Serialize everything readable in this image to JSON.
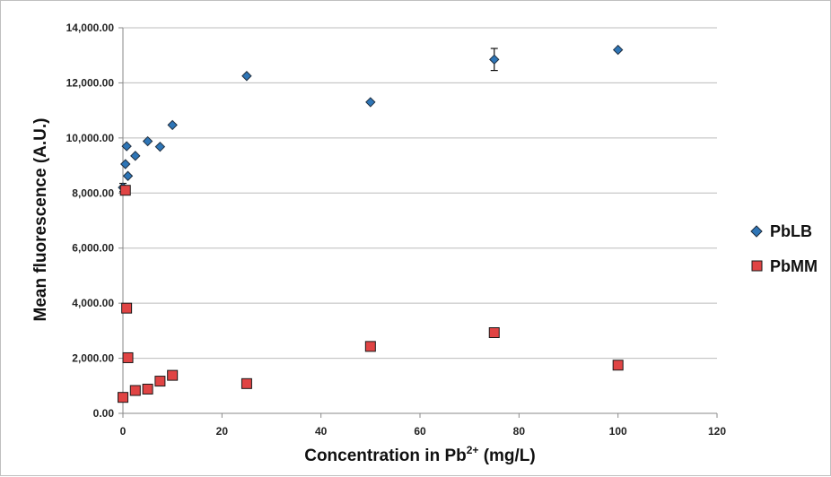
{
  "chart_data": {
    "type": "scatter",
    "xlabel": "Concentration in Pb",
    "xlabel_superscript": "2+",
    "xlabel_suffix": " (mg/L)",
    "ylabel": "Mean fluorescence (A.U.)",
    "xlim": [
      0,
      120
    ],
    "ylim": [
      0,
      14000
    ],
    "x_ticks": [
      "0",
      "20",
      "40",
      "60",
      "80",
      "100",
      "120"
    ],
    "y_ticks": [
      "0.00",
      "2,000.00",
      "4,000.00",
      "6,000.00",
      "8,000.00",
      "10,000.00",
      "12,000.00",
      "14,000.00"
    ],
    "grid": "horizontal",
    "legend_position": "right",
    "series": [
      {
        "name": "PbLB",
        "marker": "diamond",
        "color": "#2e75b6",
        "points": [
          {
            "x": 0,
            "y": 8200,
            "err": 150
          },
          {
            "x": 0.5,
            "y": 9050,
            "err": 0
          },
          {
            "x": 0.75,
            "y": 9700,
            "err": 0
          },
          {
            "x": 1,
            "y": 8620,
            "err": 0
          },
          {
            "x": 2.5,
            "y": 9350,
            "err": 0
          },
          {
            "x": 5,
            "y": 9880,
            "err": 0
          },
          {
            "x": 7.5,
            "y": 9680,
            "err": 0
          },
          {
            "x": 10,
            "y": 10470,
            "err": 0
          },
          {
            "x": 25,
            "y": 12250,
            "err": 0
          },
          {
            "x": 50,
            "y": 11300,
            "err": 0
          },
          {
            "x": 75,
            "y": 12850,
            "err": 400
          },
          {
            "x": 100,
            "y": 13200,
            "err": 0
          }
        ]
      },
      {
        "name": "PbMM",
        "marker": "square",
        "color": "#e04444",
        "points": [
          {
            "x": 0,
            "y": 580,
            "err": 0
          },
          {
            "x": 0.5,
            "y": 8100,
            "err": 0
          },
          {
            "x": 0.75,
            "y": 3820,
            "err": 0
          },
          {
            "x": 1,
            "y": 2020,
            "err": 0
          },
          {
            "x": 2.5,
            "y": 830,
            "err": 0
          },
          {
            "x": 5,
            "y": 880,
            "err": 0
          },
          {
            "x": 7.5,
            "y": 1170,
            "err": 0
          },
          {
            "x": 10,
            "y": 1380,
            "err": 0
          },
          {
            "x": 25,
            "y": 1080,
            "err": 0
          },
          {
            "x": 50,
            "y": 2430,
            "err": 0
          },
          {
            "x": 75,
            "y": 2930,
            "err": 0
          },
          {
            "x": 100,
            "y": 1750,
            "err": 0
          }
        ]
      }
    ]
  }
}
